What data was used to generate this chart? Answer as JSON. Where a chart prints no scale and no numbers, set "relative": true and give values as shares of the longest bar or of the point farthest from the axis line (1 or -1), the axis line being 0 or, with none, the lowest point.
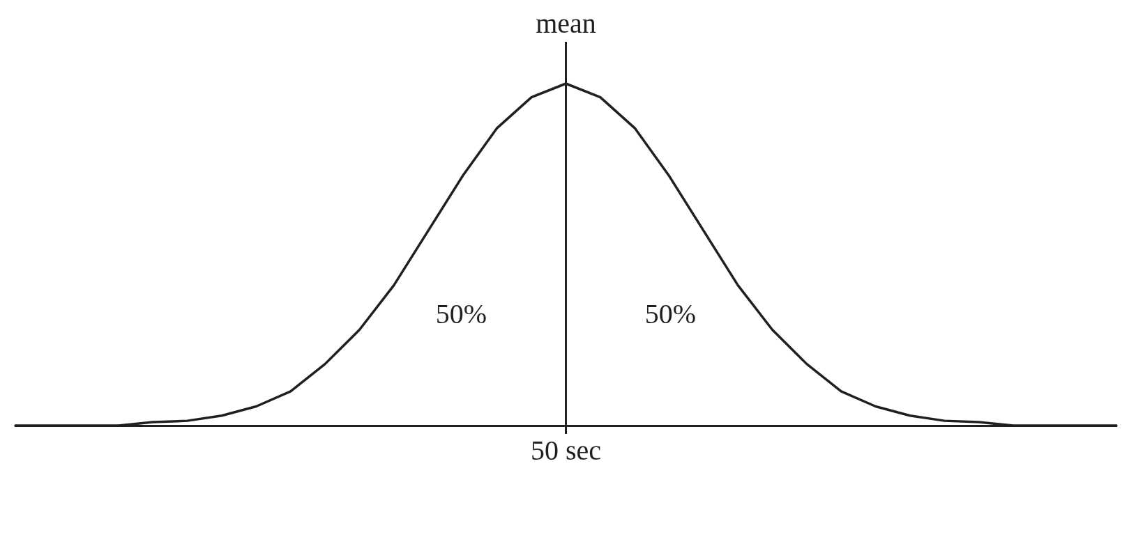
{
  "chart_data": {
    "type": "line",
    "relative": true,
    "categories": [
      null,
      null,
      null,
      null,
      null,
      null,
      null,
      null,
      null,
      null,
      null,
      null,
      null,
      null,
      null,
      null,
      null,
      null,
      null,
      null,
      null,
      null,
      null,
      null,
      null,
      null,
      null,
      null,
      null,
      null,
      null,
      null,
      null
    ],
    "series": [
      {
        "color": "#231f20",
        "values": [
          0,
          0,
          0,
          0,
          0.01,
          0.014,
          0.029,
          0.056,
          0.1,
          0.18,
          0.28,
          0.41,
          0.57,
          0.73,
          0.87,
          0.96,
          1,
          0.96,
          0.87,
          0.73,
          0.57,
          0.41,
          0.28,
          0.18,
          0.1,
          0.056,
          0.029,
          0.014,
          0.01,
          0,
          0,
          0,
          0
        ]
      }
    ],
    "ref_lines": [
      {
        "axis": "x",
        "value": "50 sec",
        "label": "mean",
        "color": "#231f20"
      }
    ],
    "annotations": [
      "50%",
      "50%"
    ],
    "marker": "none",
    "line_style": "solid",
    "grid": false,
    "legend": false,
    "tick_labels": "x"
  }
}
